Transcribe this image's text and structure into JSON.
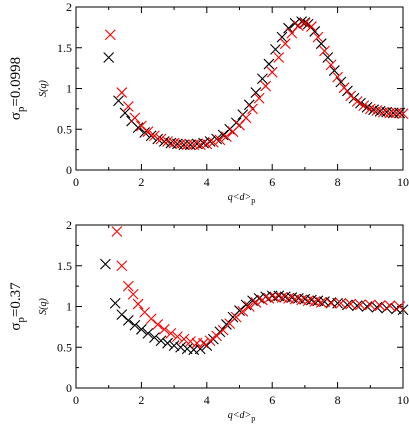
{
  "chart_data": [
    {
      "type": "scatter",
      "row_label": "σp=0.0998",
      "row_label_base": "σ",
      "row_label_sub": "p",
      "row_label_value": "=0.0998",
      "xlabel": "q<d>p",
      "xlabel_main": "q<d>",
      "xlabel_sub": "p",
      "ylabel": "S(q)",
      "xlim": [
        0,
        10
      ],
      "ylim": [
        0,
        2
      ],
      "xticks": [
        "0",
        "2",
        "4",
        "6",
        "8",
        "10"
      ],
      "yticks": [
        "0",
        "0.5",
        "1",
        "1.5",
        "2"
      ],
      "marker": "x",
      "series": [
        {
          "color": "#000000",
          "x": [
            1.0,
            1.3,
            1.5,
            1.7,
            1.9,
            2.1,
            2.3,
            2.5,
            2.7,
            2.9,
            3.1,
            3.3,
            3.5,
            3.7,
            3.9,
            4.1,
            4.3,
            4.5,
            4.7,
            4.9,
            5.1,
            5.3,
            5.5,
            5.7,
            5.9,
            6.1,
            6.3,
            6.5,
            6.7,
            6.9,
            7.0,
            7.1,
            7.3,
            7.5,
            7.7,
            7.9,
            8.1,
            8.3,
            8.5,
            8.7,
            8.9,
            9.1,
            9.3,
            9.5,
            9.7,
            9.9
          ],
          "y": [
            1.38,
            0.85,
            0.7,
            0.6,
            0.52,
            0.46,
            0.42,
            0.38,
            0.35,
            0.33,
            0.32,
            0.31,
            0.31,
            0.32,
            0.33,
            0.35,
            0.38,
            0.43,
            0.5,
            0.58,
            0.68,
            0.8,
            0.95,
            1.12,
            1.3,
            1.48,
            1.63,
            1.74,
            1.8,
            1.82,
            1.81,
            1.79,
            1.7,
            1.55,
            1.38,
            1.22,
            1.08,
            0.97,
            0.88,
            0.82,
            0.77,
            0.74,
            0.72,
            0.71,
            0.7,
            0.7
          ]
        },
        {
          "color": "#ff0000",
          "x": [
            1.05,
            1.4,
            1.6,
            1.8,
            2.0,
            2.2,
            2.4,
            2.6,
            2.8,
            3.0,
            3.2,
            3.4,
            3.6,
            3.8,
            4.0,
            4.2,
            4.4,
            4.6,
            4.8,
            5.0,
            5.2,
            5.4,
            5.6,
            5.8,
            6.0,
            6.2,
            6.4,
            6.6,
            6.8,
            7.0,
            7.2,
            7.4,
            7.6,
            7.8,
            8.0,
            8.2,
            8.4,
            8.6,
            8.8,
            9.0,
            9.2,
            9.4,
            9.6,
            9.8,
            10.0
          ],
          "y": [
            1.66,
            0.95,
            0.78,
            0.64,
            0.54,
            0.47,
            0.42,
            0.38,
            0.35,
            0.33,
            0.32,
            0.31,
            0.31,
            0.31,
            0.32,
            0.34,
            0.37,
            0.41,
            0.47,
            0.55,
            0.64,
            0.75,
            0.88,
            1.03,
            1.2,
            1.38,
            1.55,
            1.68,
            1.77,
            1.8,
            1.76,
            1.63,
            1.46,
            1.29,
            1.14,
            1.01,
            0.91,
            0.84,
            0.79,
            0.75,
            0.73,
            0.71,
            0.7,
            0.7,
            0.69
          ]
        }
      ]
    },
    {
      "type": "scatter",
      "row_label": "σp=0.37",
      "row_label_base": "σ",
      "row_label_sub": "p",
      "row_label_value": "=0.37",
      "xlabel": "q<d>p",
      "xlabel_main": "q<d>",
      "xlabel_sub": "p",
      "ylabel": "S(q)",
      "xlim": [
        0,
        10
      ],
      "ylim": [
        0,
        2
      ],
      "xticks": [
        "0",
        "2",
        "4",
        "6",
        "8",
        "10"
      ],
      "yticks": [
        "0",
        "0.5",
        "1",
        "1.5",
        "2"
      ],
      "marker": "x",
      "series": [
        {
          "color": "#000000",
          "x": [
            0.9,
            1.2,
            1.4,
            1.6,
            1.8,
            2.0,
            2.2,
            2.4,
            2.6,
            2.8,
            3.0,
            3.2,
            3.4,
            3.6,
            3.8,
            4.0,
            4.2,
            4.4,
            4.6,
            4.8,
            5.0,
            5.2,
            5.4,
            5.6,
            5.8,
            6.0,
            6.2,
            6.4,
            6.6,
            6.8,
            7.0,
            7.2,
            7.4,
            7.6,
            7.8,
            8.0,
            8.3,
            8.6,
            8.9,
            9.2,
            9.5,
            9.8,
            10.0
          ],
          "y": [
            1.52,
            1.04,
            0.9,
            0.83,
            0.77,
            0.72,
            0.67,
            0.62,
            0.58,
            0.55,
            0.52,
            0.5,
            0.48,
            0.47,
            0.48,
            0.52,
            0.6,
            0.69,
            0.78,
            0.87,
            0.95,
            1.02,
            1.07,
            1.1,
            1.12,
            1.13,
            1.13,
            1.12,
            1.11,
            1.1,
            1.09,
            1.08,
            1.07,
            1.06,
            1.05,
            1.04,
            1.02,
            1.01,
            1.0,
            0.99,
            0.98,
            0.97,
            0.96
          ]
        },
        {
          "color": "#ff0000",
          "x": [
            1.25,
            1.4,
            1.6,
            1.75,
            1.9,
            2.1,
            2.3,
            2.5,
            2.7,
            2.9,
            3.1,
            3.3,
            3.5,
            3.7,
            3.9,
            4.1,
            4.3,
            4.5,
            4.7,
            4.9,
            5.1,
            5.3,
            5.5,
            5.7,
            5.9,
            6.1,
            6.3,
            6.5,
            6.7,
            6.9,
            7.1,
            7.3,
            7.5,
            7.8,
            8.1,
            8.4,
            8.7,
            9.0,
            9.3,
            9.6,
            9.9
          ],
          "y": [
            1.92,
            1.5,
            1.25,
            1.15,
            1.03,
            0.93,
            0.85,
            0.78,
            0.72,
            0.67,
            0.63,
            0.6,
            0.57,
            0.55,
            0.55,
            0.58,
            0.64,
            0.71,
            0.79,
            0.87,
            0.94,
            1.0,
            1.05,
            1.08,
            1.1,
            1.11,
            1.11,
            1.1,
            1.09,
            1.08,
            1.07,
            1.06,
            1.05,
            1.04,
            1.04,
            1.03,
            1.02,
            1.02,
            1.01,
            1.01,
            1.0
          ]
        }
      ]
    }
  ]
}
